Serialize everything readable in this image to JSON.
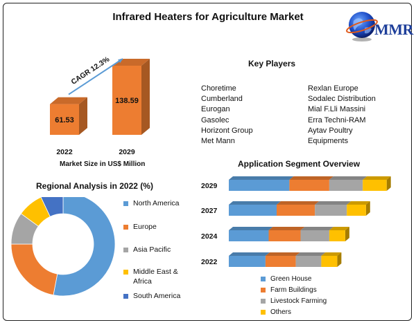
{
  "title": "Infrared Heaters for Agriculture Market",
  "logo": {
    "text": "MMR"
  },
  "market_size": {
    "caption": "Market Size in US$ Million",
    "cagr_label": "CAGR 12.3%"
  },
  "key_players": {
    "title": "Key Players",
    "column1": [
      "Choretime",
      "Cumberland",
      "Eurogan",
      "Gasolec",
      "Horizont Group",
      "Met Mann"
    ],
    "column2": [
      "Rexlan Europe",
      "Sodalec Distribution",
      "Mial F.Lli Massini",
      "Erra Techni-RAM",
      "Aytav Poultry",
      "Equipments"
    ]
  },
  "regional": {
    "title": "Regional Analysis in 2022 (%)"
  },
  "application": {
    "title": "Application Segment Overview"
  },
  "chart_data": [
    {
      "type": "bar",
      "categories": [
        "2022",
        "2029"
      ],
      "values": [
        61.53,
        138.59
      ],
      "data_labels": [
        "61.53",
        "138.59"
      ],
      "title": "",
      "xlabel": "Market Size in US$ Million",
      "ylabel": "",
      "color": "#ED7D31",
      "annotation": "CAGR 12.3%"
    },
    {
      "type": "pie",
      "title": "Regional Analysis in 2022 (%)",
      "donut": true,
      "categories": [
        "North America",
        "Europe",
        "Asia Pacific",
        "Middle East &\nAfrica",
        "South America"
      ],
      "values": [
        53,
        22,
        10,
        8,
        7
      ],
      "colors": [
        "#5B9BD5",
        "#ED7D31",
        "#A5A5A5",
        "#FFC000",
        "#4472C4"
      ],
      "legend_position": "right"
    },
    {
      "type": "bar",
      "orientation": "horizontal",
      "stacked": true,
      "title": "Application Segment Overview",
      "categories": [
        "2029",
        "2027",
        "2024",
        "2022"
      ],
      "series": [
        {
          "name": "Green House",
          "values": [
            38,
            30,
            25,
            23
          ],
          "color": "#5B9BD5"
        },
        {
          "name": "Farm Buildings",
          "values": [
            25,
            24,
            20,
            19
          ],
          "color": "#ED7D31"
        },
        {
          "name": "Livestock Farming",
          "values": [
            21,
            20,
            18,
            16
          ],
          "color": "#A5A5A5"
        },
        {
          "name": "Others",
          "values": [
            15,
            12,
            10,
            10
          ],
          "color": "#FFC000"
        }
      ],
      "legend_position": "bottom"
    }
  ]
}
